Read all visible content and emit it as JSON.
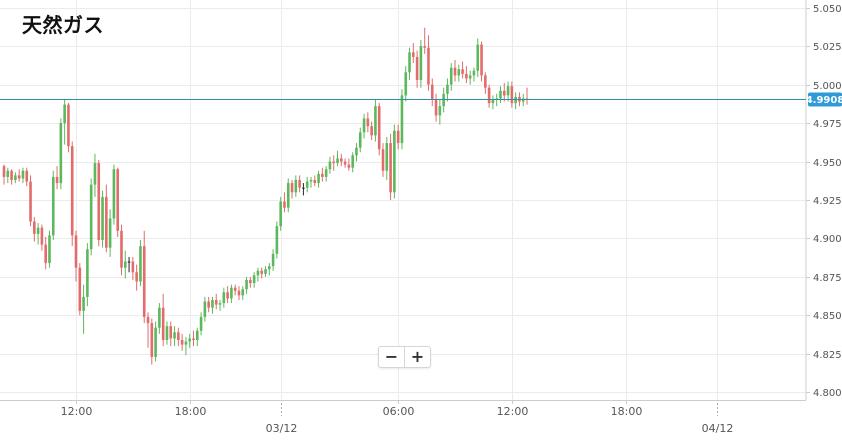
{
  "title": "天然ガス",
  "zoom": {
    "minus_label": "−",
    "plus_label": "+"
  },
  "colors": {
    "up": "#5cb85c",
    "down": "#e36b6b",
    "neutral": "#222222",
    "current_line": "#2f8fa6",
    "current_badge": "#2e9ad8",
    "grid": "#ebebeb",
    "axis": "#cccccc",
    "axis_text": "#555555"
  },
  "chart_data": {
    "type": "candlestick",
    "current_price": 4.9908,
    "current_price_label": "4.9908",
    "ylim": [
      4.8,
      5.05
    ],
    "y_ticks": [
      "5.0500",
      "5.0250",
      "5.0000",
      "4.9750",
      "4.9500",
      "4.9250",
      "4.9000",
      "4.8750",
      "4.8500",
      "4.8250",
      "4.8000"
    ],
    "x_ticks": [
      {
        "label": "12:00",
        "i": 19,
        "day": false
      },
      {
        "label": "18:00",
        "i": 49,
        "day": false
      },
      {
        "label": "03/12",
        "i": 73,
        "day": true
      },
      {
        "label": "06:00",
        "i": 104,
        "day": false
      },
      {
        "label": "12:00",
        "i": 134,
        "day": false
      },
      {
        "label": "18:00",
        "i": 164,
        "day": false
      },
      {
        "label": "04/12",
        "i": 188,
        "day": true
      }
    ],
    "candles": [
      [
        4.947,
        4.948,
        4.935,
        4.94
      ],
      [
        4.94,
        4.946,
        4.936,
        4.944
      ],
      [
        4.944,
        4.945,
        4.935,
        4.938
      ],
      [
        4.938,
        4.943,
        4.936,
        4.941
      ],
      [
        4.941,
        4.945,
        4.937,
        4.939
      ],
      [
        4.939,
        4.946,
        4.936,
        4.944
      ],
      [
        4.944,
        4.946,
        4.934,
        4.937
      ],
      [
        4.937,
        4.941,
        4.908,
        4.911
      ],
      [
        4.911,
        4.914,
        4.898,
        4.903
      ],
      [
        4.903,
        4.91,
        4.896,
        4.907
      ],
      [
        4.907,
        4.909,
        4.892,
        4.896
      ],
      [
        4.896,
        4.901,
        4.88,
        4.884
      ],
      [
        4.884,
        4.905,
        4.881,
        4.902
      ],
      [
        4.902,
        4.944,
        4.899,
        4.94
      ],
      [
        4.94,
        4.947,
        4.932,
        4.936
      ],
      [
        4.936,
        4.978,
        4.932,
        4.975
      ],
      [
        4.975,
        4.99,
        4.961,
        4.987
      ],
      [
        4.987,
        4.988,
        4.956,
        4.96
      ],
      [
        4.96,
        4.963,
        4.895,
        4.902
      ],
      [
        4.902,
        4.905,
        4.872,
        4.881
      ],
      [
        4.881,
        4.884,
        4.85,
        4.853
      ],
      [
        4.853,
        4.87,
        4.838,
        4.862
      ],
      [
        4.862,
        4.897,
        4.856,
        4.893
      ],
      [
        4.893,
        4.939,
        4.889,
        4.935
      ],
      [
        4.935,
        4.955,
        4.927,
        4.949
      ],
      [
        4.949,
        4.951,
        4.895,
        4.899
      ],
      [
        4.899,
        4.931,
        4.894,
        4.927
      ],
      [
        4.927,
        4.935,
        4.891,
        4.894
      ],
      [
        4.894,
        4.919,
        4.888,
        4.913
      ],
      [
        4.913,
        4.948,
        4.909,
        4.945
      ],
      [
        4.945,
        4.946,
        4.901,
        4.905
      ],
      [
        4.905,
        4.909,
        4.876,
        4.881
      ],
      [
        4.881,
        4.892,
        4.874,
        4.885
      ],
      [
        4.885,
        4.888,
        4.878,
        4.885
      ],
      [
        4.885,
        4.888,
        4.873,
        4.878
      ],
      [
        4.878,
        4.883,
        4.866,
        4.872
      ],
      [
        4.872,
        4.899,
        4.869,
        4.895
      ],
      [
        4.895,
        4.905,
        4.845,
        4.849
      ],
      [
        4.849,
        4.852,
        4.829,
        4.845
      ],
      [
        4.845,
        4.848,
        4.818,
        4.823
      ],
      [
        4.823,
        4.846,
        4.82,
        4.842
      ],
      [
        4.842,
        4.858,
        4.838,
        4.855
      ],
      [
        4.855,
        4.864,
        4.83,
        4.834
      ],
      [
        4.834,
        4.846,
        4.831,
        4.843
      ],
      [
        4.843,
        4.846,
        4.83,
        4.835
      ],
      [
        4.835,
        4.843,
        4.83,
        4.839
      ],
      [
        4.839,
        4.842,
        4.83,
        4.834
      ],
      [
        4.834,
        4.838,
        4.827,
        4.831
      ],
      [
        4.831,
        4.836,
        4.824,
        4.833
      ],
      [
        4.833,
        4.838,
        4.829,
        4.835
      ],
      [
        4.835,
        4.84,
        4.83,
        4.834
      ],
      [
        4.834,
        4.842,
        4.83,
        4.84
      ],
      [
        4.84,
        4.852,
        4.837,
        4.849
      ],
      [
        4.849,
        4.862,
        4.846,
        4.859
      ],
      [
        4.859,
        4.862,
        4.852,
        4.855
      ],
      [
        4.855,
        4.862,
        4.851,
        4.86
      ],
      [
        4.86,
        4.864,
        4.854,
        4.857
      ],
      [
        4.857,
        4.86,
        4.853,
        4.858
      ],
      [
        4.858,
        4.868,
        4.855,
        4.865
      ],
      [
        4.865,
        4.869,
        4.858,
        4.861
      ],
      [
        4.861,
        4.87,
        4.858,
        4.868
      ],
      [
        4.868,
        4.87,
        4.863,
        4.866
      ],
      [
        4.866,
        4.869,
        4.86,
        4.863
      ],
      [
        4.863,
        4.869,
        4.86,
        4.867
      ],
      [
        4.867,
        4.875,
        4.864,
        4.873
      ],
      [
        4.873,
        4.875,
        4.868,
        4.871
      ],
      [
        4.871,
        4.878,
        4.868,
        4.876
      ],
      [
        4.876,
        4.881,
        4.872,
        4.879
      ],
      [
        4.879,
        4.881,
        4.874,
        4.877
      ],
      [
        4.877,
        4.882,
        4.875,
        4.88
      ],
      [
        4.88,
        4.884,
        4.876,
        4.882
      ],
      [
        4.882,
        4.893,
        4.879,
        4.89
      ],
      [
        4.89,
        4.911,
        4.887,
        4.908
      ],
      [
        4.908,
        4.927,
        4.905,
        4.924
      ],
      [
        4.924,
        4.93,
        4.917,
        4.92
      ],
      [
        4.92,
        4.939,
        4.917,
        4.936
      ],
      [
        4.936,
        4.938,
        4.926,
        4.93
      ],
      [
        4.93,
        4.941,
        4.927,
        4.938
      ],
      [
        4.938,
        4.941,
        4.93,
        4.933
      ],
      [
        4.933,
        4.936,
        4.928,
        4.933
      ],
      [
        4.933,
        4.94,
        4.93,
        4.937
      ],
      [
        4.937,
        4.94,
        4.933,
        4.938
      ],
      [
        4.938,
        4.941,
        4.934,
        4.936
      ],
      [
        4.936,
        4.944,
        4.933,
        4.942
      ],
      [
        4.942,
        4.946,
        4.937,
        4.94
      ],
      [
        4.94,
        4.947,
        4.937,
        4.945
      ],
      [
        4.945,
        4.953,
        4.942,
        4.95
      ],
      [
        4.95,
        4.954,
        4.944,
        4.949
      ],
      [
        4.949,
        4.957,
        4.947,
        4.952
      ],
      [
        4.952,
        4.955,
        4.947,
        4.95
      ],
      [
        4.95,
        4.952,
        4.946,
        4.948
      ],
      [
        4.948,
        4.952,
        4.944,
        4.946
      ],
      [
        4.946,
        4.956,
        4.943,
        4.954
      ],
      [
        4.954,
        4.962,
        4.95,
        4.959
      ],
      [
        4.959,
        4.972,
        4.956,
        4.969
      ],
      [
        4.969,
        4.981,
        4.965,
        4.978
      ],
      [
        4.978,
        4.982,
        4.969,
        4.973
      ],
      [
        4.973,
        4.976,
        4.964,
        4.967
      ],
      [
        4.967,
        4.99,
        4.963,
        4.986
      ],
      [
        4.986,
        4.988,
        4.954,
        4.958
      ],
      [
        4.958,
        4.962,
        4.94,
        4.944
      ],
      [
        4.944,
        4.966,
        4.938,
        4.962
      ],
      [
        4.962,
        4.968,
        4.925,
        4.93
      ],
      [
        4.93,
        4.974,
        4.926,
        4.97
      ],
      [
        4.97,
        4.974,
        4.958,
        4.962
      ],
      [
        4.962,
        4.997,
        4.958,
        4.993
      ],
      [
        4.993,
        5.012,
        4.989,
        5.008
      ],
      [
        5.008,
        5.024,
        5.003,
        5.021
      ],
      [
        5.021,
        5.027,
        5.014,
        5.018
      ],
      [
        5.018,
        5.022,
        4.998,
        5.003
      ],
      [
        5.003,
        5.029,
        4.998,
        5.025
      ],
      [
        5.025,
        5.037,
        5.02,
        5.024
      ],
      [
        5.024,
        5.032,
        4.996,
        5.0
      ],
      [
        5.0,
        5.004,
        4.986,
        4.99
      ],
      [
        4.99,
        4.994,
        4.976,
        4.98
      ],
      [
        4.98,
        4.99,
        4.974,
        4.986
      ],
      [
        4.986,
        4.998,
        4.982,
        4.994
      ],
      [
        4.994,
        5.004,
        4.989,
        5.0
      ],
      [
        5.0,
        5.014,
        4.996,
        5.011
      ],
      [
        5.011,
        5.016,
        5.002,
        5.006
      ],
      [
        5.006,
        5.013,
        5.002,
        5.01
      ],
      [
        5.01,
        5.015,
        5.004,
        5.007
      ],
      [
        5.007,
        5.012,
        5.001,
        5.004
      ],
      [
        5.004,
        5.009,
        5.0,
        5.006
      ],
      [
        5.006,
        5.011,
        5.002,
        5.009
      ],
      [
        5.009,
        5.03,
        5.005,
        5.026
      ],
      [
        5.026,
        5.028,
        5.002,
        5.006
      ],
      [
        5.006,
        5.008,
        4.994,
        4.998
      ],
      [
        4.998,
        5.0,
        4.985,
        4.988
      ],
      [
        4.988,
        4.993,
        4.984,
        4.99
      ],
      [
        4.99,
        4.994,
        4.986,
        4.991
      ],
      [
        4.991,
        4.999,
        4.988,
        4.996
      ],
      [
        4.996,
        5.001,
        4.989,
        4.993
      ],
      [
        4.993,
        5.002,
        4.989,
        4.999
      ],
      [
        4.999,
        5.002,
        4.985,
        4.988
      ],
      [
        4.988,
        4.995,
        4.984,
        4.992
      ],
      [
        4.992,
        4.995,
        4.986,
        4.989
      ],
      [
        4.989,
        4.994,
        4.986,
        4.991
      ],
      [
        4.991,
        4.998,
        4.987,
        4.99
      ]
    ]
  }
}
